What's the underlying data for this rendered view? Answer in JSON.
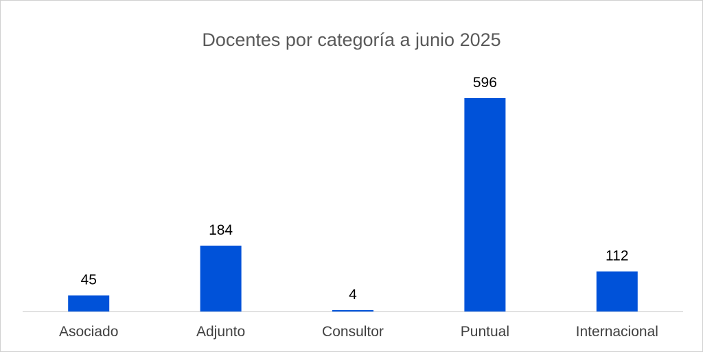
{
  "chart_data": {
    "type": "bar",
    "title": "Docentes por categoría a junio 2025",
    "categories": [
      "Asociado",
      "Adjunto",
      "Consultor",
      "Puntual",
      "Internacional"
    ],
    "values": [
      45,
      184,
      4,
      596,
      112
    ],
    "data_labels": [
      "45",
      "184",
      "4",
      "596",
      "112"
    ],
    "bar_color": "#0052D9",
    "axis_color": "#D9D9D9",
    "grid": false,
    "legend": "none"
  }
}
